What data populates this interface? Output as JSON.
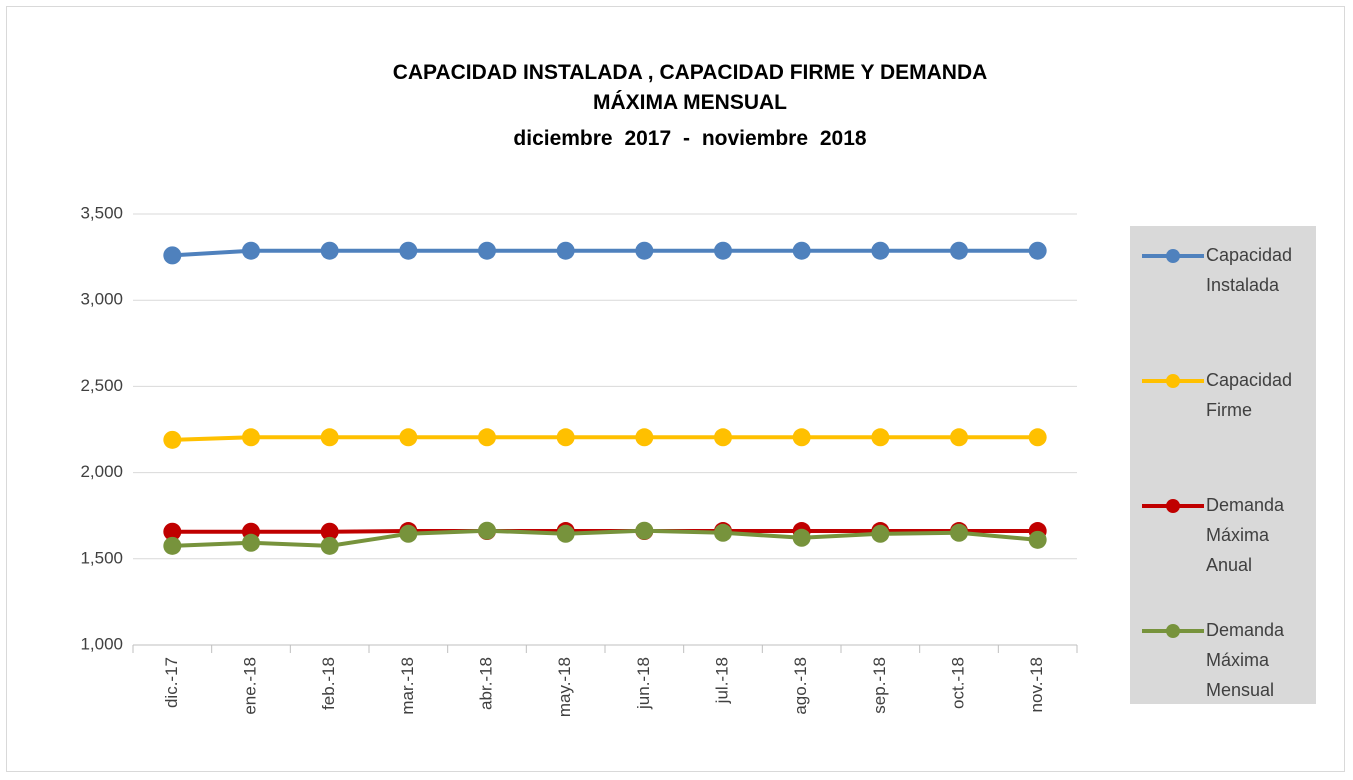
{
  "chart_data": {
    "type": "line",
    "title": "CAPACIDAD INSTALADA , CAPACIDAD FIRME Y DEMANDA MÁXIMA MENSUAL",
    "subtitle": "diciembre 2017 - noviembre 2018",
    "categories": [
      "dic.-17",
      "ene.-18",
      "feb.-18",
      "mar.-18",
      "abr.-18",
      "may.-18",
      "jun.-18",
      "jul.-18",
      "ago.-18",
      "sep.-18",
      "oct.-18",
      "nov.-18"
    ],
    "series": [
      {
        "name": "Capacidad Instalada",
        "color": "#4f81bd",
        "values": [
          3260,
          3287,
          3287,
          3287,
          3287,
          3287,
          3287,
          3287,
          3287,
          3287,
          3287,
          3287
        ]
      },
      {
        "name": "Capacidad Firme",
        "color": "#ffc000",
        "values": [
          2190,
          2205,
          2205,
          2205,
          2205,
          2205,
          2205,
          2205,
          2205,
          2205,
          2205,
          2205
        ]
      },
      {
        "name": "Demanda Máxima Anual",
        "color": "#c00000",
        "values": [
          1657,
          1657,
          1657,
          1661,
          1661,
          1661,
          1661,
          1661,
          1661,
          1661,
          1661,
          1661
        ]
      },
      {
        "name": "Demanda Máxima Mensual",
        "color": "#77933c",
        "values": [
          1575,
          1593,
          1575,
          1645,
          1663,
          1645,
          1663,
          1651,
          1622,
          1645,
          1651,
          1610
        ]
      }
    ],
    "ylim": [
      1000,
      3500
    ],
    "yticks": [
      {
        "value": 1000,
        "label": "1,000"
      },
      {
        "value": 1500,
        "label": "1,500"
      },
      {
        "value": 2000,
        "label": "2,000"
      },
      {
        "value": 2500,
        "label": "2,500"
      },
      {
        "value": 3000,
        "label": "3,000"
      },
      {
        "value": 3500,
        "label": "3,500"
      }
    ],
    "grid": true,
    "legend": "right"
  }
}
